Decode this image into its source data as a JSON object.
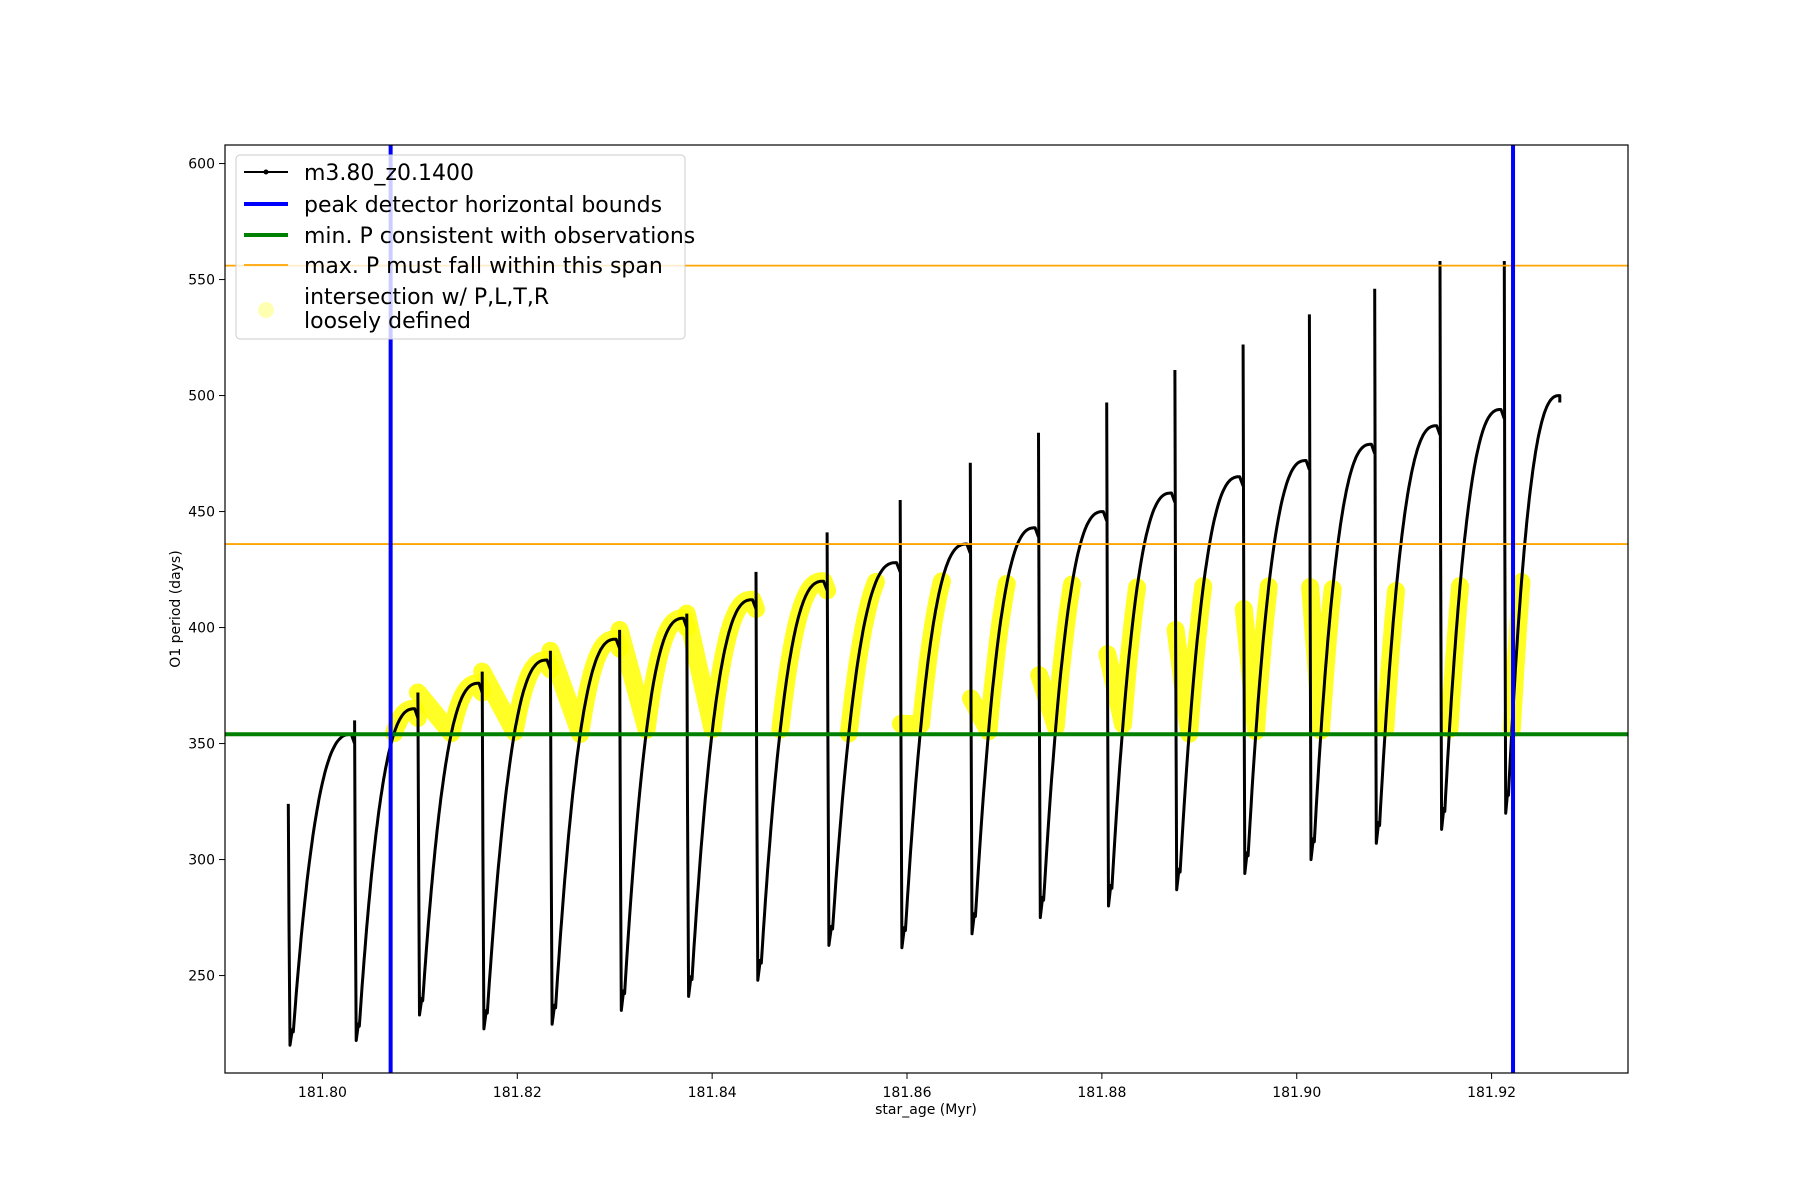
{
  "chart_data": {
    "type": "line",
    "title": "",
    "xlabel": "star_age (Myr)",
    "ylabel": "O1 period (days)",
    "xlim": [
      181.79,
      181.934
    ],
    "ylim": [
      208,
      608
    ],
    "x_ticks": [
      181.8,
      181.82,
      181.84,
      181.86,
      181.88,
      181.9,
      181.92
    ],
    "x_tick_labels": [
      "181.80",
      "181.82",
      "181.84",
      "181.86",
      "181.88",
      "181.90",
      "181.92"
    ],
    "y_ticks": [
      250,
      300,
      350,
      400,
      450,
      500,
      550,
      600
    ],
    "y_tick_labels": [
      "250",
      "300",
      "350",
      "400",
      "450",
      "500",
      "550",
      "600"
    ],
    "grid": false,
    "legend_position": "top-left",
    "cycles": [
      {
        "start": 181.7965,
        "end": 181.8033,
        "low": 220,
        "high": 354,
        "spike": 324
      },
      {
        "start": 181.8033,
        "end": 181.8098,
        "low": 222,
        "high": 365,
        "spike": 360
      },
      {
        "start": 181.8098,
        "end": 181.8164,
        "low": 233,
        "high": 376,
        "spike": 372
      },
      {
        "start": 181.8164,
        "end": 181.8234,
        "low": 227,
        "high": 386,
        "spike": 381
      },
      {
        "start": 181.8234,
        "end": 181.8305,
        "low": 229,
        "high": 395,
        "spike": 390
      },
      {
        "start": 181.8305,
        "end": 181.8374,
        "low": 235,
        "high": 404,
        "spike": 399
      },
      {
        "start": 181.8374,
        "end": 181.8445,
        "low": 241,
        "high": 412,
        "spike": 406
      },
      {
        "start": 181.8445,
        "end": 181.8518,
        "low": 248,
        "high": 420,
        "spike": 424
      },
      {
        "start": 181.8518,
        "end": 181.8593,
        "low": 263,
        "high": 428,
        "spike": 441
      },
      {
        "start": 181.8593,
        "end": 181.8665,
        "low": 262,
        "high": 436,
        "spike": 455
      },
      {
        "start": 181.8665,
        "end": 181.8735,
        "low": 268,
        "high": 443,
        "spike": 471
      },
      {
        "start": 181.8735,
        "end": 181.8805,
        "low": 275,
        "high": 450,
        "spike": 484
      },
      {
        "start": 181.8805,
        "end": 181.8875,
        "low": 280,
        "high": 458,
        "spike": 497
      },
      {
        "start": 181.8875,
        "end": 181.8945,
        "low": 287,
        "high": 465,
        "spike": 511
      },
      {
        "start": 181.8945,
        "end": 181.9013,
        "low": 294,
        "high": 472,
        "spike": 522
      },
      {
        "start": 181.9013,
        "end": 181.908,
        "low": 300,
        "high": 479,
        "spike": 535
      },
      {
        "start": 181.908,
        "end": 181.9147,
        "low": 307,
        "high": 487,
        "spike": 546
      },
      {
        "start": 181.9147,
        "end": 181.9213,
        "low": 313,
        "high": 494,
        "spike": 558
      },
      {
        "start": 181.9213,
        "end": 181.927,
        "low": 320,
        "high": 500,
        "spike": 558
      }
    ],
    "series": [
      {
        "name": "m3.80_z0.1400",
        "color": "#000000",
        "style": "line-dots"
      },
      {
        "name": "peak detector horizontal bounds",
        "color": "#0000ff",
        "orientation": "vertical",
        "x": [
          181.807,
          181.9222
        ]
      },
      {
        "name": "min. P consistent with observations",
        "color": "#008000",
        "orientation": "horizontal",
        "y": 354
      },
      {
        "name": "max. P must fall within this span",
        "color": "#ffa500",
        "orientation": "horizontal",
        "y": [
          436,
          556
        ]
      },
      {
        "name": "intersection w/ P,L,T,R\nloosely defined",
        "color": "#ffff00",
        "style": "highlight",
        "y_range": [
          354,
          420
        ]
      }
    ],
    "legend": [
      {
        "label": "m3.80_z0.1400",
        "marker": "line-dot"
      },
      {
        "label": "peak detector horizontal bounds",
        "marker": "thick-line"
      },
      {
        "label": "min. P consistent with observations",
        "marker": "thick-line"
      },
      {
        "label": "max. P must fall within this span",
        "marker": "thin-line"
      },
      {
        "label_lines": [
          "intersection w/ P,L,T,R",
          "loosely defined"
        ],
        "marker": "circle"
      }
    ]
  }
}
